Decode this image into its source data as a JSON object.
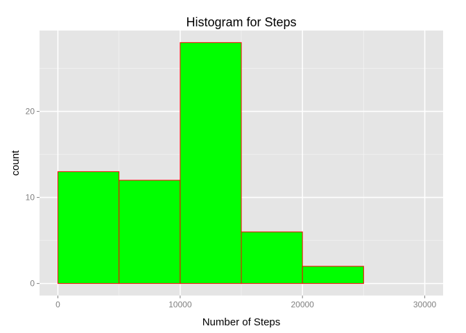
{
  "chart_data": {
    "type": "bar",
    "title": "Histogram for Steps",
    "xlabel": "Number of Steps",
    "ylabel": "count",
    "bin_edges": [
      0,
      5000,
      10000,
      15000,
      20000,
      25000,
      30000
    ],
    "values": [
      13,
      12,
      28,
      6,
      2,
      0
    ],
    "xlim": [
      -1500,
      31500
    ],
    "ylim": [
      -1.4,
      29.4
    ],
    "x_ticks": [
      0,
      10000,
      20000,
      30000
    ],
    "x_tick_labels": [
      "0",
      "10000",
      "20000",
      "30000"
    ],
    "y_ticks": [
      0,
      10,
      20
    ],
    "y_tick_labels": [
      "0",
      "10",
      "20"
    ],
    "grid": true,
    "legend": "none",
    "colors": {
      "panel_background": "#e5e5e5",
      "grid_major": "#ffffff",
      "grid_minor": "#f2f2f2",
      "bar_fill": "#00ff00",
      "bar_border": "#ff0000",
      "tick_mark": "#7f7f7f"
    }
  }
}
